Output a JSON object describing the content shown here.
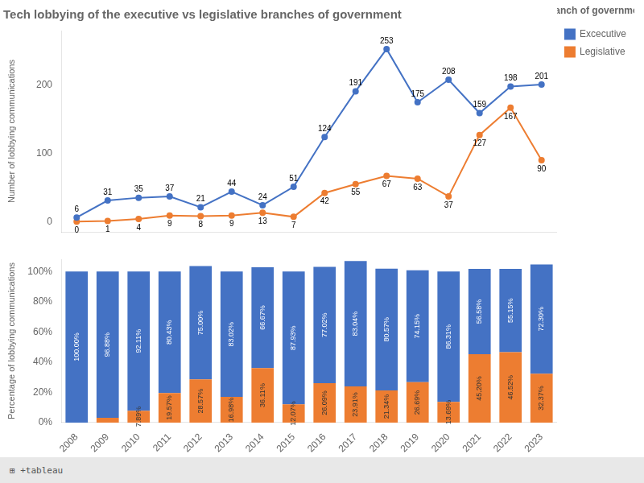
{
  "chart_data": [
    {
      "type": "line",
      "title": "Tech lobbying of the executive vs legislative branches of government",
      "categories": [
        "2008",
        "2009",
        "2010",
        "2011",
        "2012",
        "2013",
        "2014",
        "2015",
        "2016",
        "2017",
        "2018",
        "2019",
        "2020",
        "2021",
        "2022",
        "2023"
      ],
      "series": [
        {
          "name": "Excecutive",
          "color": "#4472C4",
          "values": [
            6,
            31,
            35,
            37,
            21,
            44,
            24,
            51,
            124,
            191,
            253,
            175,
            208,
            159,
            198,
            201
          ]
        },
        {
          "name": "Legislative",
          "color": "#ED7D31",
          "values": [
            0,
            1,
            4,
            9,
            8,
            9,
            13,
            7,
            42,
            55,
            67,
            63,
            37,
            127,
            167,
            90
          ]
        }
      ],
      "ylabel": "Number of lobbying communications",
      "ylim": [
        -15,
        280
      ],
      "yticks": [
        0,
        100,
        200
      ],
      "grid": false,
      "legend": "right",
      "legend_title": "Branch of government",
      "marker": "circle",
      "data_labels": true,
      "tick_labels": "y"
    },
    {
      "type": "bar",
      "stacked": true,
      "categories": [
        "2008",
        "2009",
        "2010",
        "2011",
        "2012",
        "2013",
        "2014",
        "2015",
        "2016",
        "2017",
        "2018",
        "2019",
        "2020",
        "2021",
        "2022",
        "2023"
      ],
      "series": [
        {
          "name": "Legislative",
          "color": "#ED7D31",
          "values": [
            0.0,
            3.12,
            7.89,
            19.57,
            28.57,
            16.98,
            36.11,
            12.07,
            26.09,
            23.91,
            21.34,
            26.69,
            13.69,
            45.2,
            46.52,
            32.37
          ],
          "value_labels": [
            null,
            null,
            "7.89%",
            "19.57%",
            "28.57%",
            "16.98%",
            "36.11%",
            "12.07%",
            "26.09%",
            "23.91%",
            "21.34%",
            "26.69%",
            "13.69%",
            "45.20%",
            "46.52%",
            "32.37%"
          ]
        },
        {
          "name": "Excecutive",
          "color": "#4472C4",
          "values": [
            100.0,
            96.88,
            92.11,
            80.43,
            75.0,
            83.02,
            66.67,
            87.93,
            77.02,
            83.04,
            80.57,
            74.15,
            86.31,
            56.58,
            55.15,
            72.3
          ],
          "value_labels": [
            "100.00%",
            "96.88%",
            "92.11%",
            "80.43%",
            "75.00%",
            "83.02%",
            "66.67%",
            "87.93%",
            "77.02%",
            "83.04%",
            "80.57%",
            "74.15%",
            "86.31%",
            "56.58%",
            "55.15%",
            "72.30%"
          ]
        }
      ],
      "ylabel": "Percentage of lobbying communications",
      "ylim": [
        0,
        108
      ],
      "yticks": [
        {
          "value": 0,
          "label": "0%"
        },
        {
          "value": 20,
          "label": "20%"
        },
        {
          "value": 40,
          "label": "40%"
        },
        {
          "value": 60,
          "label": "60%"
        },
        {
          "value": 80,
          "label": "80%"
        },
        {
          "value": 100,
          "label": "100%"
        }
      ],
      "grid": false,
      "legend": false,
      "data_labels": true,
      "annotations": [
        "⊞ +tableau"
      ]
    }
  ]
}
